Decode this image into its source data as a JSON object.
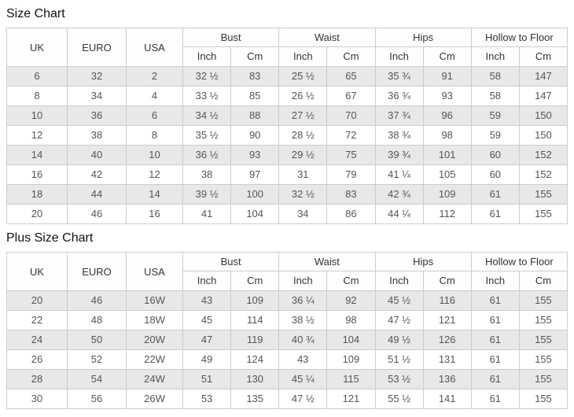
{
  "colors": {
    "border": "#cccccc",
    "stripe": "#e8e8e8",
    "header_text": "#333333",
    "cell_text": "#555555",
    "title_text": "#111111",
    "background": "#ffffff"
  },
  "chart_data": [
    {
      "type": "table",
      "title": "Size Chart",
      "headers": {
        "uk": "UK",
        "euro": "EURO",
        "usa": "USA",
        "groups": [
          "Bust",
          "Waist",
          "Hips",
          "Hollow to Floor"
        ],
        "sub": [
          "Inch",
          "Cm"
        ]
      },
      "rows": [
        [
          "6",
          "32",
          "2",
          "32 ½",
          "83",
          "25 ½",
          "65",
          "35 ¾",
          "91",
          "58",
          "147"
        ],
        [
          "8",
          "34",
          "4",
          "33 ½",
          "85",
          "26 ½",
          "67",
          "36 ¾",
          "93",
          "58",
          "147"
        ],
        [
          "10",
          "36",
          "6",
          "34 ½",
          "88",
          "27 ½",
          "70",
          "37 ¾",
          "96",
          "59",
          "150"
        ],
        [
          "12",
          "38",
          "8",
          "35 ½",
          "90",
          "28 ½",
          "72",
          "38 ¾",
          "98",
          "59",
          "150"
        ],
        [
          "14",
          "40",
          "10",
          "36 ½",
          "93",
          "29 ½",
          "75",
          "39 ¾",
          "101",
          "60",
          "152"
        ],
        [
          "16",
          "42",
          "12",
          "38",
          "97",
          "31",
          "79",
          "41 ¼",
          "105",
          "60",
          "152"
        ],
        [
          "18",
          "44",
          "14",
          "39 ½",
          "100",
          "32 ½",
          "83",
          "42 ¾",
          "109",
          "61",
          "155"
        ],
        [
          "20",
          "46",
          "16",
          "41",
          "104",
          "34",
          "86",
          "44 ¼",
          "112",
          "61",
          "155"
        ]
      ]
    },
    {
      "type": "table",
      "title": "Plus Size Chart",
      "headers": {
        "uk": "UK",
        "euro": "EURO",
        "usa": "USA",
        "groups": [
          "Bust",
          "Waist",
          "Hips",
          "Hollow to Floor"
        ],
        "sub": [
          "Inch",
          "Cm"
        ]
      },
      "rows": [
        [
          "20",
          "46",
          "16W",
          "43",
          "109",
          "36 ¼",
          "92",
          "45 ½",
          "116",
          "61",
          "155"
        ],
        [
          "22",
          "48",
          "18W",
          "45",
          "114",
          "38 ½",
          "98",
          "47 ½",
          "121",
          "61",
          "155"
        ],
        [
          "24",
          "50",
          "20W",
          "47",
          "119",
          "40 ¾",
          "104",
          "49 ½",
          "126",
          "61",
          "155"
        ],
        [
          "26",
          "52",
          "22W",
          "49",
          "124",
          "43",
          "109",
          "51 ½",
          "131",
          "61",
          "155"
        ],
        [
          "28",
          "54",
          "24W",
          "51",
          "130",
          "45 ¼",
          "115",
          "53 ½",
          "136",
          "61",
          "155"
        ],
        [
          "30",
          "56",
          "26W",
          "53",
          "135",
          "47 ½",
          "121",
          "55 ½",
          "141",
          "61",
          "155"
        ]
      ]
    }
  ]
}
